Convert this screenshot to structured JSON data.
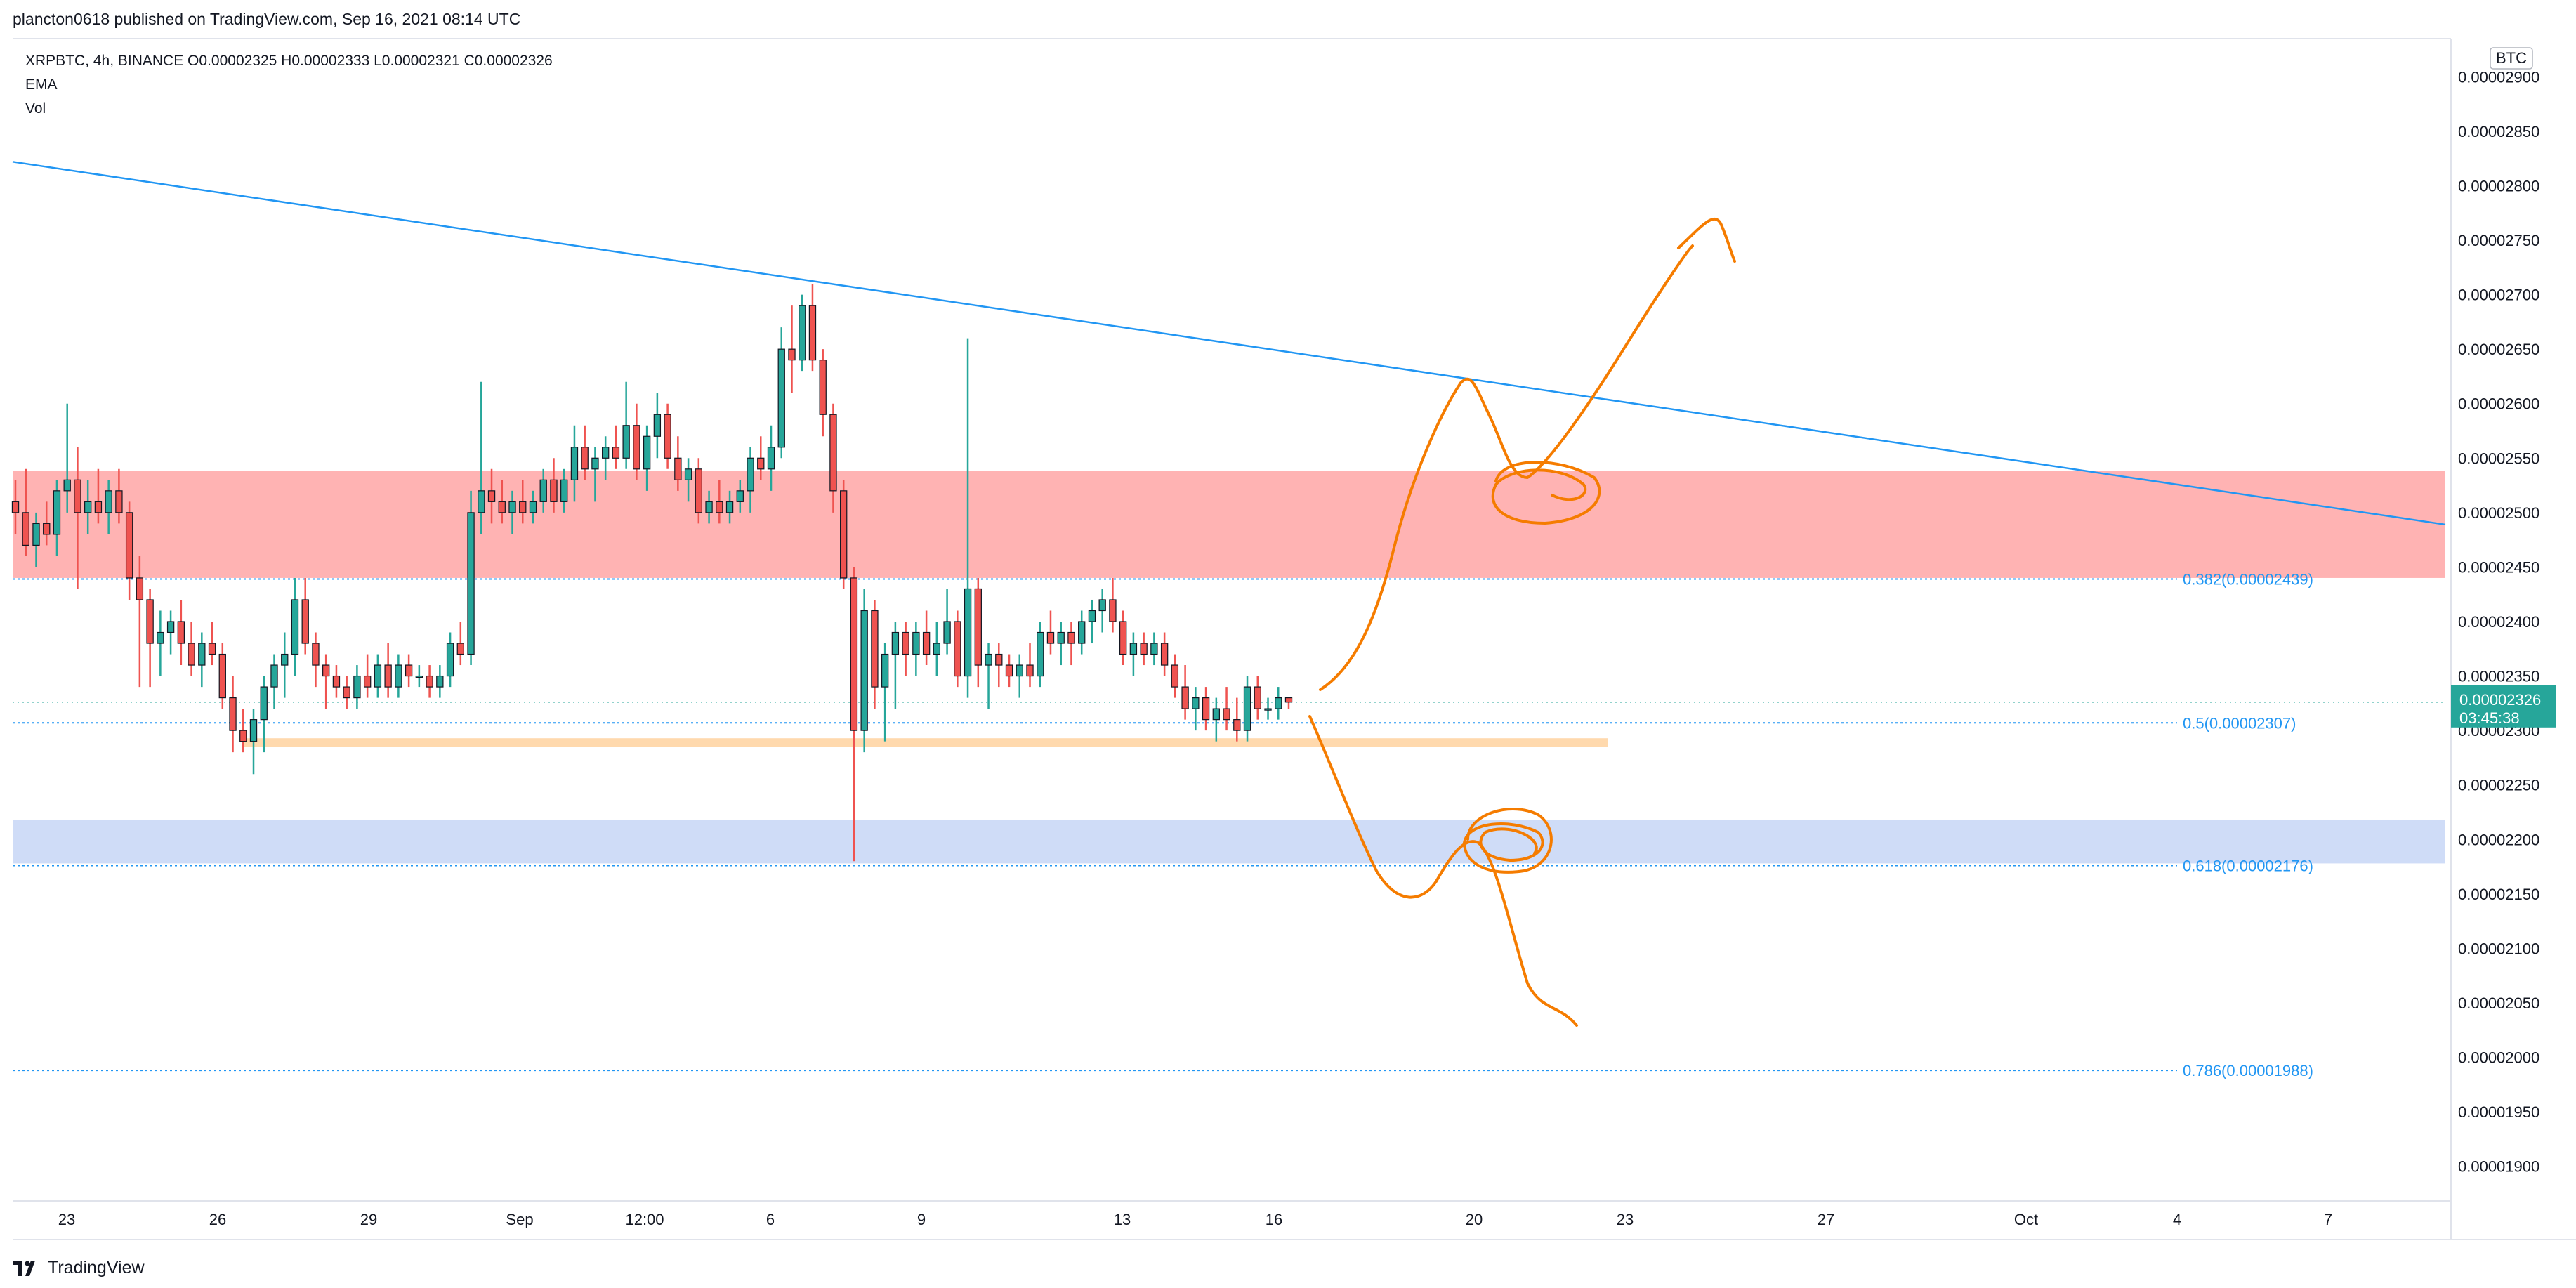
{
  "header": {
    "published": "plancton0618 published on TradingView.com, Sep 16, 2021 08:14 UTC"
  },
  "legend": {
    "symbol_line": "XRPBTC, 4h, BINANCE  O0.00002325  H0.00002333  L0.00002321  C0.00002326",
    "ema": "EMA",
    "vol": "Vol"
  },
  "price_axis": {
    "currency": "BTC",
    "last_price": "0.00002326",
    "countdown": "03:45:38"
  },
  "footer": {
    "brand": "TradingView"
  },
  "colors": {
    "up": "#26a69a",
    "down": "#ef5350",
    "trendline": "#2196f3",
    "resistance_zone": "#ffb3b3",
    "support_zone": "#cfdcf7",
    "horizontal_level": "#ffd9ad",
    "drawing": "#f57c00",
    "last_price_badge": "#26a69a"
  },
  "chart_data": {
    "type": "candlestick",
    "symbol": "XRPBTC",
    "timeframe": "4h",
    "exchange": "BINANCE",
    "ohlc_last": {
      "open": 2.325e-05,
      "high": 2.333e-05,
      "low": 2.321e-05,
      "close": 2.326e-05
    },
    "y_range": [
      1.865e-05,
      2.935e-05
    ],
    "y_ticks": [
      "0.00002900",
      "0.00002850",
      "0.00002800",
      "0.00002750",
      "0.00002700",
      "0.00002650",
      "0.00002600",
      "0.00002550",
      "0.00002500",
      "0.00002450",
      "0.00002400",
      "0.00002350",
      "0.00002300",
      "0.00002250",
      "0.00002200",
      "0.00002150",
      "0.00002100",
      "0.00002050",
      "0.00002000",
      "0.00001950",
      "0.00001900"
    ],
    "x_ticks": [
      "23",
      "26",
      "29",
      "Sep",
      "12:00",
      "6",
      "9",
      "13",
      "16",
      "20",
      "23",
      "27",
      "Oct",
      "4",
      "7"
    ],
    "fib_levels": [
      {
        "label": "0.382(0.00002439)",
        "value": 2.439e-05
      },
      {
        "label": "0.5(0.00002307)",
        "value": 2.307e-05
      },
      {
        "label": "0.618(0.00002176)",
        "value": 2.176e-05
      },
      {
        "label": "0.786(0.00001988)",
        "value": 1.988e-05
      }
    ],
    "zones": [
      {
        "kind": "resistance",
        "from": 2.44e-05,
        "to": 2.538e-05
      },
      {
        "kind": "support",
        "from": 2.178e-05,
        "to": 2.218e-05
      }
    ],
    "horizontal_level": 2.289e-05,
    "trendline": {
      "start": 2.822e-05,
      "end": 2.489e-05
    },
    "candles": [
      [
        2.51e-05,
        2.53e-05,
        2.48e-05,
        2.5e-05
      ],
      [
        2.5e-05,
        2.54e-05,
        2.46e-05,
        2.47e-05
      ],
      [
        2.47e-05,
        2.5e-05,
        2.45e-05,
        2.49e-05
      ],
      [
        2.49e-05,
        2.51e-05,
        2.47e-05,
        2.48e-05
      ],
      [
        2.48e-05,
        2.53e-05,
        2.46e-05,
        2.52e-05
      ],
      [
        2.52e-05,
        2.6e-05,
        2.5e-05,
        2.53e-05
      ],
      [
        2.53e-05,
        2.56e-05,
        2.43e-05,
        2.5e-05
      ],
      [
        2.5e-05,
        2.53e-05,
        2.48e-05,
        2.51e-05
      ],
      [
        2.51e-05,
        2.54e-05,
        2.49e-05,
        2.5e-05
      ],
      [
        2.5e-05,
        2.53e-05,
        2.48e-05,
        2.52e-05
      ],
      [
        2.52e-05,
        2.54e-05,
        2.49e-05,
        2.5e-05
      ],
      [
        2.5e-05,
        2.51e-05,
        2.42e-05,
        2.44e-05
      ],
      [
        2.44e-05,
        2.46e-05,
        2.34e-05,
        2.42e-05
      ],
      [
        2.42e-05,
        2.43e-05,
        2.34e-05,
        2.38e-05
      ],
      [
        2.38e-05,
        2.41e-05,
        2.35e-05,
        2.39e-05
      ],
      [
        2.39e-05,
        2.41e-05,
        2.37e-05,
        2.4e-05
      ],
      [
        2.4e-05,
        2.42e-05,
        2.36e-05,
        2.38e-05
      ],
      [
        2.38e-05,
        2.4e-05,
        2.35e-05,
        2.36e-05
      ],
      [
        2.36e-05,
        2.39e-05,
        2.34e-05,
        2.38e-05
      ],
      [
        2.38e-05,
        2.4e-05,
        2.36e-05,
        2.37e-05
      ],
      [
        2.37e-05,
        2.38e-05,
        2.32e-05,
        2.33e-05
      ],
      [
        2.33e-05,
        2.35e-05,
        2.28e-05,
        2.3e-05
      ],
      [
        2.3e-05,
        2.32e-05,
        2.28e-05,
        2.29e-05
      ],
      [
        2.29e-05,
        2.32e-05,
        2.26e-05,
        2.31e-05
      ],
      [
        2.31e-05,
        2.35e-05,
        2.28e-05,
        2.34e-05
      ],
      [
        2.34e-05,
        2.37e-05,
        2.32e-05,
        2.36e-05
      ],
      [
        2.36e-05,
        2.39e-05,
        2.33e-05,
        2.37e-05
      ],
      [
        2.37e-05,
        2.44e-05,
        2.35e-05,
        2.42e-05
      ],
      [
        2.42e-05,
        2.44e-05,
        2.37e-05,
        2.38e-05
      ],
      [
        2.38e-05,
        2.39e-05,
        2.34e-05,
        2.36e-05
      ],
      [
        2.36e-05,
        2.37e-05,
        2.32e-05,
        2.35e-05
      ],
      [
        2.35e-05,
        2.36e-05,
        2.33e-05,
        2.34e-05
      ],
      [
        2.34e-05,
        2.35e-05,
        2.32e-05,
        2.33e-05
      ],
      [
        2.33e-05,
        2.36e-05,
        2.32e-05,
        2.35e-05
      ],
      [
        2.35e-05,
        2.37e-05,
        2.33e-05,
        2.34e-05
      ],
      [
        2.34e-05,
        2.37e-05,
        2.33e-05,
        2.36e-05
      ],
      [
        2.36e-05,
        2.38e-05,
        2.33e-05,
        2.34e-05
      ],
      [
        2.34e-05,
        2.37e-05,
        2.33e-05,
        2.36e-05
      ],
      [
        2.36e-05,
        2.37e-05,
        2.34e-05,
        2.35e-05
      ],
      [
        2.35e-05,
        2.36e-05,
        2.34e-05,
        2.35e-05
      ],
      [
        2.35e-05,
        2.36e-05,
        2.33e-05,
        2.34e-05
      ],
      [
        2.34e-05,
        2.36e-05,
        2.33e-05,
        2.35e-05
      ],
      [
        2.35e-05,
        2.39e-05,
        2.34e-05,
        2.38e-05
      ],
      [
        2.38e-05,
        2.4e-05,
        2.36e-05,
        2.37e-05
      ],
      [
        2.37e-05,
        2.52e-05,
        2.36e-05,
        2.5e-05
      ],
      [
        2.5e-05,
        2.62e-05,
        2.48e-05,
        2.52e-05
      ],
      [
        2.52e-05,
        2.54e-05,
        2.49e-05,
        2.51e-05
      ],
      [
        2.51e-05,
        2.53e-05,
        2.49e-05,
        2.5e-05
      ],
      [
        2.5e-05,
        2.52e-05,
        2.48e-05,
        2.51e-05
      ],
      [
        2.51e-05,
        2.53e-05,
        2.49e-05,
        2.5e-05
      ],
      [
        2.5e-05,
        2.52e-05,
        2.49e-05,
        2.51e-05
      ],
      [
        2.51e-05,
        2.54e-05,
        2.5e-05,
        2.53e-05
      ],
      [
        2.53e-05,
        2.55e-05,
        2.5e-05,
        2.51e-05
      ],
      [
        2.51e-05,
        2.54e-05,
        2.5e-05,
        2.53e-05
      ],
      [
        2.53e-05,
        2.58e-05,
        2.51e-05,
        2.56e-05
      ],
      [
        2.56e-05,
        2.58e-05,
        2.53e-05,
        2.54e-05
      ],
      [
        2.54e-05,
        2.56e-05,
        2.51e-05,
        2.55e-05
      ],
      [
        2.55e-05,
        2.57e-05,
        2.53e-05,
        2.56e-05
      ],
      [
        2.56e-05,
        2.58e-05,
        2.54e-05,
        2.55e-05
      ],
      [
        2.55e-05,
        2.62e-05,
        2.54e-05,
        2.58e-05
      ],
      [
        2.58e-05,
        2.6e-05,
        2.53e-05,
        2.54e-05
      ],
      [
        2.54e-05,
        2.58e-05,
        2.52e-05,
        2.57e-05
      ],
      [
        2.57e-05,
        2.61e-05,
        2.55e-05,
        2.59e-05
      ],
      [
        2.59e-05,
        2.6e-05,
        2.54e-05,
        2.55e-05
      ],
      [
        2.55e-05,
        2.57e-05,
        2.52e-05,
        2.53e-05
      ],
      [
        2.53e-05,
        2.55e-05,
        2.51e-05,
        2.54e-05
      ],
      [
        2.54e-05,
        2.55e-05,
        2.49e-05,
        2.5e-05
      ],
      [
        2.5e-05,
        2.52e-05,
        2.49e-05,
        2.51e-05
      ],
      [
        2.51e-05,
        2.53e-05,
        2.49e-05,
        2.5e-05
      ],
      [
        2.5e-05,
        2.52e-05,
        2.49e-05,
        2.51e-05
      ],
      [
        2.51e-05,
        2.53e-05,
        2.5e-05,
        2.52e-05
      ],
      [
        2.52e-05,
        2.56e-05,
        2.5e-05,
        2.55e-05
      ],
      [
        2.55e-05,
        2.57e-05,
        2.53e-05,
        2.54e-05
      ],
      [
        2.54e-05,
        2.58e-05,
        2.52e-05,
        2.56e-05
      ],
      [
        2.56e-05,
        2.67e-05,
        2.55e-05,
        2.65e-05
      ],
      [
        2.65e-05,
        2.69e-05,
        2.61e-05,
        2.64e-05
      ],
      [
        2.64e-05,
        2.7e-05,
        2.63e-05,
        2.69e-05
      ],
      [
        2.69e-05,
        2.71e-05,
        2.63e-05,
        2.64e-05
      ],
      [
        2.64e-05,
        2.65e-05,
        2.57e-05,
        2.59e-05
      ],
      [
        2.59e-05,
        2.6e-05,
        2.5e-05,
        2.52e-05
      ],
      [
        2.52e-05,
        2.53e-05,
        2.43e-05,
        2.44e-05
      ],
      [
        2.44e-05,
        2.45e-05,
        2.18e-05,
        2.3e-05
      ],
      [
        2.3e-05,
        2.43e-05,
        2.28e-05,
        2.41e-05
      ],
      [
        2.41e-05,
        2.42e-05,
        2.32e-05,
        2.34e-05
      ],
      [
        2.34e-05,
        2.38e-05,
        2.29e-05,
        2.37e-05
      ],
      [
        2.37e-05,
        2.4e-05,
        2.32e-05,
        2.39e-05
      ],
      [
        2.39e-05,
        2.4e-05,
        2.35e-05,
        2.37e-05
      ],
      [
        2.37e-05,
        2.4e-05,
        2.35e-05,
        2.39e-05
      ],
      [
        2.39e-05,
        2.41e-05,
        2.36e-05,
        2.37e-05
      ],
      [
        2.37e-05,
        2.4e-05,
        2.35e-05,
        2.38e-05
      ],
      [
        2.38e-05,
        2.43e-05,
        2.37e-05,
        2.4e-05
      ],
      [
        2.4e-05,
        2.41e-05,
        2.34e-05,
        2.35e-05
      ],
      [
        2.35e-05,
        2.66e-05,
        2.33e-05,
        2.43e-05
      ],
      [
        2.43e-05,
        2.44e-05,
        2.34e-05,
        2.36e-05
      ],
      [
        2.36e-05,
        2.38e-05,
        2.32e-05,
        2.37e-05
      ],
      [
        2.37e-05,
        2.38e-05,
        2.34e-05,
        2.36e-05
      ],
      [
        2.36e-05,
        2.37e-05,
        2.34e-05,
        2.35e-05
      ],
      [
        2.35e-05,
        2.37e-05,
        2.33e-05,
        2.36e-05
      ],
      [
        2.36e-05,
        2.38e-05,
        2.34e-05,
        2.35e-05
      ],
      [
        2.35e-05,
        2.4e-05,
        2.34e-05,
        2.39e-05
      ],
      [
        2.39e-05,
        2.41e-05,
        2.37e-05,
        2.38e-05
      ],
      [
        2.38e-05,
        2.4e-05,
        2.36e-05,
        2.39e-05
      ],
      [
        2.39e-05,
        2.4e-05,
        2.36e-05,
        2.38e-05
      ],
      [
        2.38e-05,
        2.41e-05,
        2.37e-05,
        2.4e-05
      ],
      [
        2.4e-05,
        2.42e-05,
        2.38e-05,
        2.41e-05
      ],
      [
        2.41e-05,
        2.43e-05,
        2.39e-05,
        2.42e-05
      ],
      [
        2.42e-05,
        2.44e-05,
        2.39e-05,
        2.4e-05
      ],
      [
        2.4e-05,
        2.41e-05,
        2.36e-05,
        2.37e-05
      ],
      [
        2.37e-05,
        2.39e-05,
        2.35e-05,
        2.38e-05
      ],
      [
        2.38e-05,
        2.39e-05,
        2.36e-05,
        2.37e-05
      ],
      [
        2.37e-05,
        2.39e-05,
        2.36e-05,
        2.38e-05
      ],
      [
        2.38e-05,
        2.39e-05,
        2.35e-05,
        2.36e-05
      ],
      [
        2.36e-05,
        2.37e-05,
        2.33e-05,
        2.34e-05
      ],
      [
        2.34e-05,
        2.36e-05,
        2.31e-05,
        2.32e-05
      ],
      [
        2.32e-05,
        2.34e-05,
        2.3e-05,
        2.33e-05
      ],
      [
        2.33e-05,
        2.34e-05,
        2.3e-05,
        2.31e-05
      ],
      [
        2.31e-05,
        2.33e-05,
        2.29e-05,
        2.32e-05
      ],
      [
        2.32e-05,
        2.34e-05,
        2.3e-05,
        2.31e-05
      ],
      [
        2.31e-05,
        2.33e-05,
        2.29e-05,
        2.3e-05
      ],
      [
        2.3e-05,
        2.35e-05,
        2.29e-05,
        2.34e-05
      ],
      [
        2.34e-05,
        2.35e-05,
        2.31e-05,
        2.32e-05
      ],
      [
        2.32e-05,
        2.33e-05,
        2.31e-05,
        2.32e-05
      ],
      [
        2.32e-05,
        2.34e-05,
        2.31e-05,
        2.33e-05
      ],
      [
        2.33e-05,
        2.33e-05,
        2.32e-05,
        2.326e-05
      ]
    ]
  }
}
